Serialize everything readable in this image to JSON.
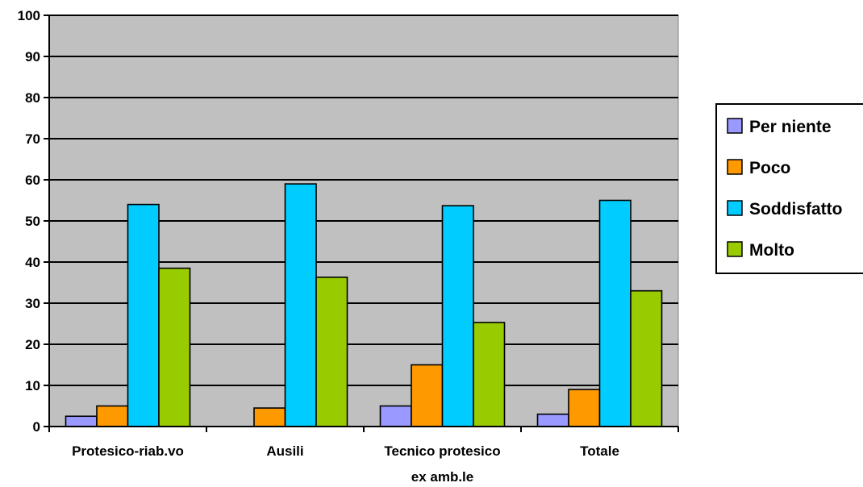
{
  "chart_data": {
    "type": "bar",
    "title": "",
    "xlabel": "",
    "ylabel": "",
    "ylim": [
      0,
      100
    ],
    "yticks": [
      0,
      10,
      20,
      30,
      40,
      50,
      60,
      70,
      80,
      90,
      100
    ],
    "grid": true,
    "legend_position": "right",
    "categories": [
      [
        "Protesico-riab.vo"
      ],
      [
        "Ausili"
      ],
      [
        "Tecnico protesico",
        "ex amb.le"
      ],
      [
        "Totale"
      ]
    ],
    "series": [
      {
        "name": "Per niente",
        "color": "#9999ff",
        "values": [
          2.5,
          0,
          5,
          3
        ]
      },
      {
        "name": "Poco",
        "color": "#ff9900",
        "values": [
          5,
          4.5,
          15,
          9
        ]
      },
      {
        "name": "Soddisfatto",
        "color": "#00ccff",
        "values": [
          54,
          59,
          53.7,
          55
        ]
      },
      {
        "name": "Molto",
        "color": "#99cc00",
        "values": [
          38.5,
          36.3,
          25.3,
          33
        ]
      }
    ],
    "plot_background": "#c0c0c0"
  }
}
